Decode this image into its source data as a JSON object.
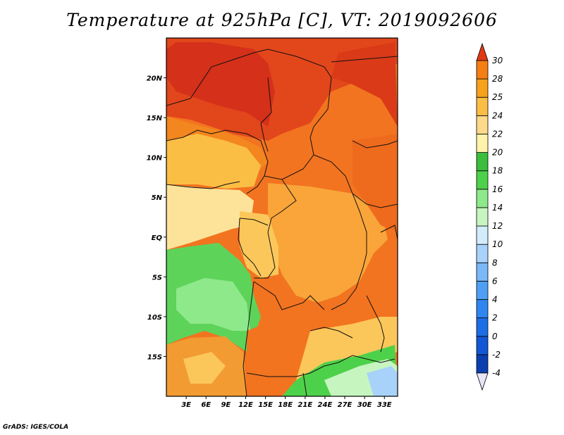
{
  "title": "Temperature at 925hPa [C], VT: 2019092606",
  "credit": "GrADS: IGES/COLA",
  "map": {
    "lon_range": [
      0,
      35
    ],
    "lat_range": [
      -20,
      25
    ],
    "lon_ticks": [
      {
        "value": 3,
        "label": "3E"
      },
      {
        "value": 6,
        "label": "6E"
      },
      {
        "value": 9,
        "label": "9E"
      },
      {
        "value": 12,
        "label": "12E"
      },
      {
        "value": 15,
        "label": "15E"
      },
      {
        "value": 18,
        "label": "18E"
      },
      {
        "value": 21,
        "label": "21E"
      },
      {
        "value": 24,
        "label": "24E"
      },
      {
        "value": 27,
        "label": "27E"
      },
      {
        "value": 30,
        "label": "30E"
      },
      {
        "value": 33,
        "label": "33E"
      }
    ],
    "lat_ticks": [
      {
        "value": 20,
        "label": "20N"
      },
      {
        "value": 15,
        "label": "15N"
      },
      {
        "value": 10,
        "label": "10N"
      },
      {
        "value": 5,
        "label": "5N"
      },
      {
        "value": 0,
        "label": "EQ"
      },
      {
        "value": -5,
        "label": "5S"
      },
      {
        "value": -10,
        "label": "10S"
      },
      {
        "value": -15,
        "label": "15S"
      }
    ]
  },
  "colorbar": {
    "levels": [
      {
        "value": "-4",
        "color": "#0a1f8a"
      },
      {
        "value": "-2",
        "color": "#0b3fb0"
      },
      {
        "value": "0",
        "color": "#1257d6"
      },
      {
        "value": "2",
        "color": "#1c6ee6"
      },
      {
        "value": "4",
        "color": "#2f86f0"
      },
      {
        "value": "6",
        "color": "#4fa0f5"
      },
      {
        "value": "8",
        "color": "#7ab8f8"
      },
      {
        "value": "10",
        "color": "#a8d2fa"
      },
      {
        "value": "12",
        "color": "#d2ecfb"
      },
      {
        "value": "14",
        "color": "#c6f5c0"
      },
      {
        "value": "16",
        "color": "#8ee98a"
      },
      {
        "value": "18",
        "color": "#4ed14a"
      },
      {
        "value": "20",
        "color": "#3cbd3c"
      },
      {
        "value": "22",
        "color": "#fef3a8"
      },
      {
        "value": "24",
        "color": "#fdd98a"
      },
      {
        "value": "25",
        "color": "#fbbe45"
      },
      {
        "value": "28",
        "color": "#f7a21b"
      },
      {
        "value": "30",
        "color": "#f57e12"
      }
    ],
    "labels": [
      "-4",
      "-2",
      "0",
      "2",
      "4",
      "6",
      "8",
      "10",
      "12",
      "14",
      "16",
      "18",
      "20",
      "22",
      "24",
      "25",
      "28",
      "30"
    ],
    "under_color": "#e6e6f8",
    "over_color": "#e03a14",
    "top_band_color": "#ec5a14"
  }
}
